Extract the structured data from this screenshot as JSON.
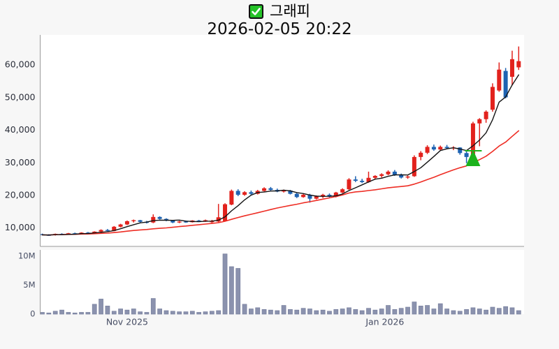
{
  "header": {
    "checkbox_icon": "green-checked-checkbox",
    "title": "그래피",
    "subtitle": "2026-02-05 20:22"
  },
  "colors": {
    "background": "#f7f7f7",
    "plot_background": "#ffffff",
    "axis_line": "#9a9a9a",
    "up_candle": "#e2221d",
    "down_candle": "#1e63b2",
    "ma_fast": "#141414",
    "ma_slow": "#ee2d24",
    "volume_bar_fill": "#8b92ae",
    "volume_bar_edge": "#79819f",
    "marker_green": "#1cb21c",
    "checkbox_green": "#25c228",
    "price_tick_text": "#2b2f3a",
    "axis_label_text": "#454c63"
  },
  "chart_data": {
    "type": "candlestick+volume",
    "title": "그래피",
    "subtitle": "2026-02-05 20:22",
    "price_axis": {
      "range": [
        4370,
        69250
      ],
      "ticks": [
        {
          "value": 10000,
          "label": "10,000"
        },
        {
          "value": 20000,
          "label": "20,000"
        },
        {
          "value": 30000,
          "label": "30,000"
        },
        {
          "value": 40000,
          "label": "40,000"
        },
        {
          "value": 50000,
          "label": "50,000"
        },
        {
          "value": 60000,
          "label": "60,000"
        }
      ]
    },
    "volume_axis": {
      "range": [
        0,
        11100000
      ],
      "ticks": [
        {
          "value": 0,
          "label": "0"
        },
        {
          "value": 5000000,
          "label": "5M"
        },
        {
          "value": 10000000,
          "label": "10M"
        }
      ]
    },
    "x_axis": {
      "labels": [
        {
          "label": "Nov 2025",
          "index": 13
        },
        {
          "label": "Jan 2026",
          "index": 52.5
        }
      ]
    },
    "grid": false,
    "legend": "none",
    "ohlc_note": "arrays are [open, high, low, close]; red = close up, blue = close down",
    "candles": [
      [
        8100,
        8300,
        7800,
        7900
      ],
      [
        7900,
        8100,
        7600,
        7800
      ],
      [
        7800,
        8300,
        7700,
        8200
      ],
      [
        8200,
        8400,
        7900,
        8000
      ],
      [
        8000,
        8500,
        7900,
        8400
      ],
      [
        8400,
        8600,
        8100,
        8200
      ],
      [
        8200,
        8700,
        8100,
        8600
      ],
      [
        8600,
        8800,
        8300,
        8400
      ],
      [
        8400,
        9000,
        8300,
        8900
      ],
      [
        8900,
        9600,
        8700,
        9400
      ],
      [
        9400,
        9700,
        9000,
        9100
      ],
      [
        9100,
        10600,
        9000,
        10400
      ],
      [
        10400,
        11300,
        10200,
        11100
      ],
      [
        11100,
        12300,
        10900,
        12100
      ],
      [
        12100,
        12600,
        11700,
        12400
      ],
      [
        12400,
        12500,
        11700,
        11900
      ],
      [
        11900,
        12200,
        11400,
        11600
      ],
      [
        11700,
        14200,
        11500,
        13400
      ],
      [
        13400,
        13600,
        12600,
        12800
      ],
      [
        12800,
        13000,
        12100,
        12300
      ],
      [
        12300,
        12500,
        11500,
        11700
      ],
      [
        11700,
        12200,
        11500,
        12000
      ],
      [
        12000,
        12300,
        11600,
        11800
      ],
      [
        11800,
        12400,
        11700,
        12300
      ],
      [
        12300,
        12500,
        11900,
        12000
      ],
      [
        12000,
        12600,
        11900,
        12400
      ],
      [
        11800,
        12500,
        11400,
        12100
      ],
      [
        12000,
        17400,
        11800,
        13300
      ],
      [
        12100,
        17600,
        12000,
        17300
      ],
      [
        17200,
        21800,
        17000,
        21400
      ],
      [
        21400,
        21900,
        19800,
        20200
      ],
      [
        20200,
        21300,
        19900,
        21000
      ],
      [
        21000,
        21500,
        20200,
        20500
      ],
      [
        20500,
        21700,
        20300,
        21400
      ],
      [
        21400,
        22500,
        21200,
        22200
      ],
      [
        22200,
        22600,
        21500,
        21700
      ],
      [
        21700,
        22100,
        21000,
        21200
      ],
      [
        21200,
        21800,
        20900,
        21500
      ],
      [
        21500,
        21700,
        20300,
        20500
      ],
      [
        20500,
        20800,
        19200,
        19500
      ],
      [
        19500,
        20600,
        19300,
        20200
      ],
      [
        20200,
        20500,
        17800,
        19000
      ],
      [
        19000,
        20000,
        18800,
        19700
      ],
      [
        19700,
        20500,
        19200,
        20200
      ],
      [
        20200,
        20600,
        19400,
        19600
      ],
      [
        19600,
        21100,
        19400,
        20900
      ],
      [
        20900,
        22200,
        20700,
        21900
      ],
      [
        21900,
        25300,
        21700,
        24900
      ],
      [
        24900,
        25900,
        24100,
        24500
      ],
      [
        24500,
        25100,
        23800,
        24100
      ],
      [
        24100,
        27300,
        23900,
        25400
      ],
      [
        25400,
        26200,
        24900,
        26000
      ],
      [
        26000,
        26800,
        25500,
        26500
      ],
      [
        26500,
        27700,
        26200,
        27300
      ],
      [
        27300,
        27800,
        26000,
        26300
      ],
      [
        26300,
        26700,
        25200,
        25500
      ],
      [
        25500,
        26100,
        25100,
        25800
      ],
      [
        25900,
        32300,
        25700,
        31800
      ],
      [
        31800,
        33600,
        30800,
        33100
      ],
      [
        33100,
        35400,
        32700,
        34900
      ],
      [
        34900,
        35600,
        33700,
        34100
      ],
      [
        34100,
        35300,
        33800,
        34900
      ],
      [
        34900,
        35500,
        34200,
        34500
      ],
      [
        34500,
        35100,
        33900,
        34700
      ],
      [
        34700,
        34800,
        32500,
        33000
      ],
      [
        33000,
        33700,
        29900,
        31800
      ],
      [
        32000,
        42600,
        31800,
        42100
      ],
      [
        42100,
        43700,
        35100,
        43400
      ],
      [
        43400,
        46100,
        42300,
        45700
      ],
      [
        46300,
        54400,
        45700,
        53300
      ],
      [
        52200,
        60800,
        51800,
        58600
      ],
      [
        58200,
        59100,
        49800,
        50100
      ],
      [
        56400,
        64400,
        53800,
        61800
      ],
      [
        59300,
        65700,
        58500,
        61200
      ]
    ],
    "volumes": [
      300000,
      200000,
      500000,
      700000,
      300000,
      200000,
      300000,
      300000,
      1700000,
      2600000,
      1400000,
      500000,
      900000,
      700000,
      900000,
      400000,
      300000,
      2700000,
      900000,
      600000,
      500000,
      400000,
      400000,
      500000,
      300000,
      400000,
      500000,
      600000,
      10400000,
      8200000,
      7900000,
      1700000,
      900000,
      1100000,
      800000,
      700000,
      600000,
      1500000,
      800000,
      700000,
      1000000,
      900000,
      600000,
      700000,
      500000,
      800000,
      900000,
      1100000,
      800000,
      600000,
      1000000,
      700000,
      900000,
      1500000,
      800000,
      1000000,
      1200000,
      2100000,
      1400000,
      1500000,
      900000,
      1800000,
      900000,
      600000,
      500000,
      800000,
      1100000,
      900000,
      700000,
      1200000,
      1000000,
      1300000,
      1100000,
      600000
    ],
    "overlays": {
      "ma_fast": {
        "type": "sma_of_close",
        "window": 5,
        "color_key": "ma_fast"
      },
      "ma_slow": {
        "type": "sma_of_close",
        "window": 20,
        "color_key": "ma_slow"
      },
      "buy_marker": {
        "shape": "triangle-up",
        "index": 66,
        "apex_value": 34000,
        "base_value": 29000,
        "signal_line_value": 33700
      }
    }
  }
}
